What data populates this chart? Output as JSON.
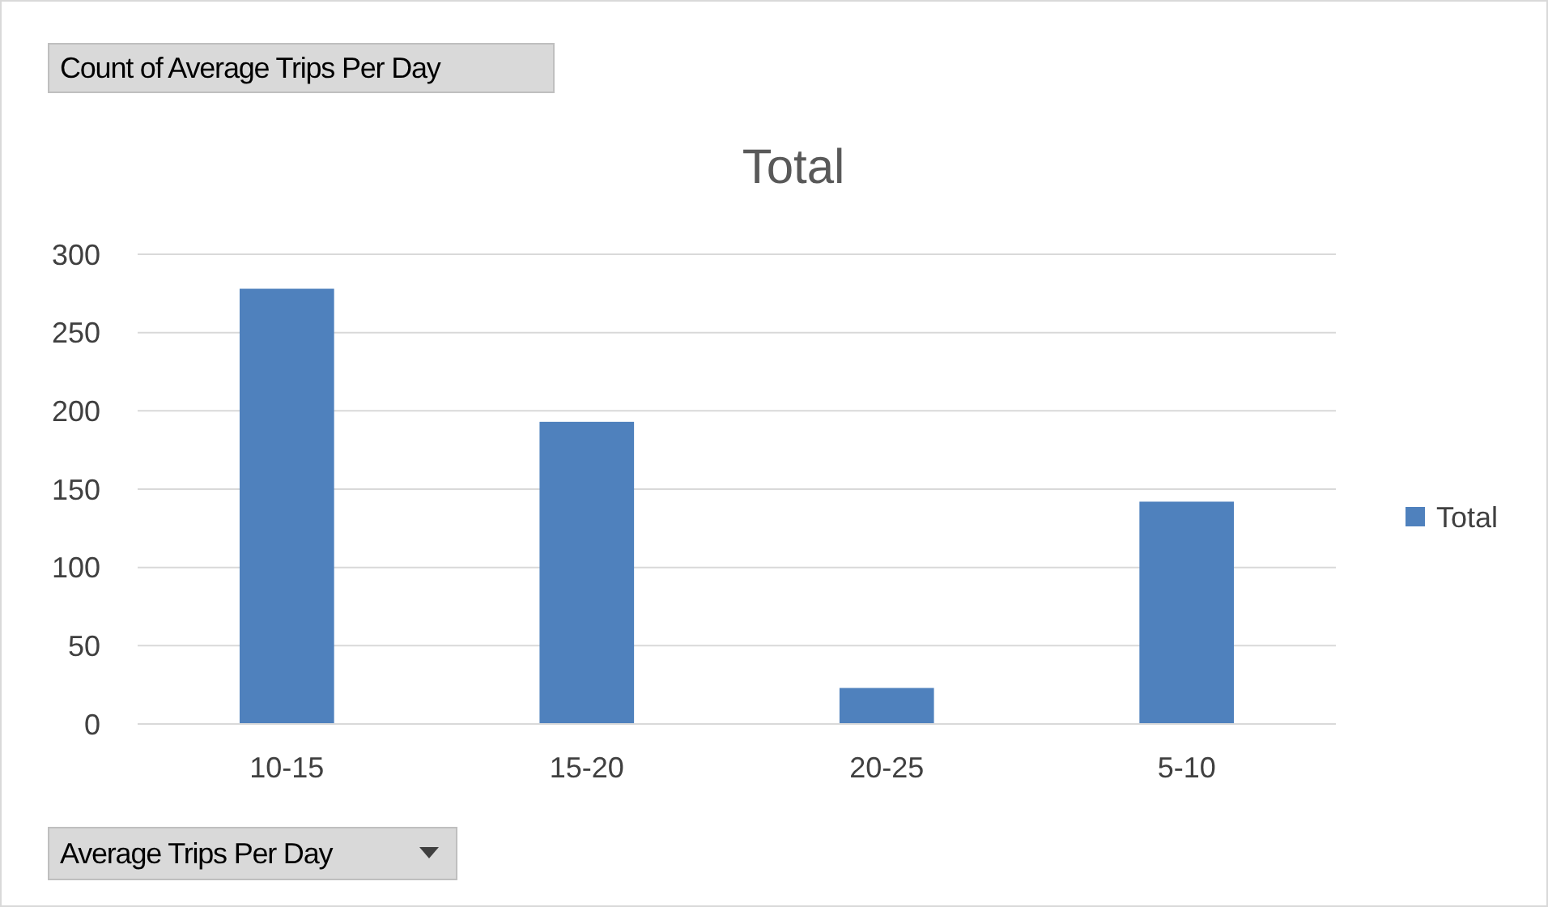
{
  "chart_data": {
    "type": "bar",
    "title": "Total",
    "annotations": [
      "Count of Average Trips Per Day"
    ],
    "xlabel": "Average Trips Per Day",
    "categories": [
      "10-15",
      "15-20",
      "20-25",
      "5-10"
    ],
    "series": [
      {
        "name": "Total",
        "color": "#4f81bd",
        "values": [
          278,
          193,
          23,
          142
        ]
      }
    ],
    "ylim": [
      0,
      300
    ],
    "yticks": [
      0,
      50,
      100,
      150,
      200,
      250,
      300
    ],
    "grid": "y",
    "legend": "right"
  }
}
